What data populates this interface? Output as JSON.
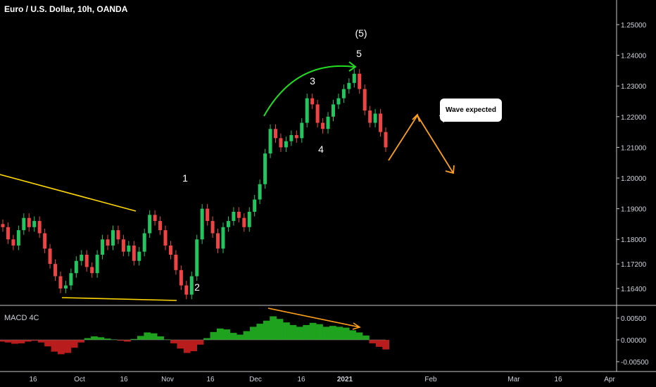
{
  "title": "Euro / U.S. Dollar, 10h, OANDA",
  "macd_title": "MACD 4C",
  "callout_text": "Wave expected",
  "colors": {
    "background": "#000000",
    "up": "#22c55e",
    "down": "#ef4444",
    "macd_up": "#1fa31f",
    "macd_down": "#b91c1c",
    "trend": "#ffd700",
    "arc": "#22dd22",
    "projection": "#ff9f1a"
  },
  "wave_labels": [
    "(5)",
    "5",
    "3",
    "1",
    "4",
    "2"
  ],
  "price_axis": {
    "ticks": [
      "1.25000",
      "1.24000",
      "1.23000",
      "1.22000",
      "1.21000",
      "1.20000",
      "1.19000",
      "1.18000",
      "1.17200",
      "1.16400"
    ]
  },
  "macd_axis": {
    "ticks": [
      "0.00500",
      "0.00000",
      "-0.00500"
    ]
  },
  "time_axis": {
    "ticks": [
      "16",
      "Oct",
      "16",
      "Nov",
      "16",
      "Dec",
      "16",
      "2021",
      "Feb",
      "Mar",
      "16",
      "Apr"
    ]
  },
  "chart_data": [
    {
      "type": "line",
      "title": "Euro / U.S. Dollar, 10h, OANDA",
      "xlabel": "",
      "ylabel": "",
      "ylim": [
        1.159,
        1.258
      ],
      "series": [
        {
          "name": "",
          "values": [
            1.184,
            1.18,
            1.178,
            1.183,
            1.187,
            1.184,
            1.186,
            1.182,
            1.177,
            1.172,
            1.168,
            1.164,
            1.165,
            1.169,
            1.173,
            1.175,
            1.171,
            1.169,
            1.175,
            1.18,
            1.178,
            1.183,
            1.18,
            1.176,
            1.178,
            1.173,
            1.176,
            1.182,
            1.188,
            1.186,
            1.183,
            1.178,
            1.175,
            1.17,
            1.165,
            1.162,
            1.168,
            1.18,
            1.19,
            1.186,
            1.182,
            1.177,
            1.184,
            1.186,
            1.189,
            1.187,
            1.184,
            1.189,
            1.193,
            1.198,
            1.208,
            1.216,
            1.213,
            1.21,
            1.212,
            1.214,
            1.213,
            1.218,
            1.226,
            1.224,
            1.218,
            1.216,
            1.22,
            1.224,
            1.226,
            1.229,
            1.231,
            1.234,
            1.229,
            1.222,
            1.218,
            1.221,
            1.215,
            1.21
          ]
        }
      ],
      "annotations": [
        "(5)",
        "5",
        "3",
        "1",
        "4",
        "2"
      ]
    },
    {
      "type": "bar",
      "title": "MACD 4C",
      "xlabel": "",
      "ylabel": "",
      "ylim": [
        -0.0055,
        0.0057
      ],
      "series": [
        {
          "name": "",
          "values": [
            -0.0004,
            -0.0006,
            -0.0009,
            -0.0008,
            -0.0004,
            -0.0002,
            -0.0006,
            -0.0015,
            -0.0027,
            -0.0033,
            -0.003,
            -0.0018,
            -0.0006,
            0.0004,
            0.0008,
            0.0006,
            0.0003,
            0.0001,
            -0.0002,
            -0.0004,
            0.0002,
            0.0009,
            0.0017,
            0.0015,
            0.0008,
            0.0001,
            -0.0008,
            -0.002,
            -0.003,
            -0.0026,
            -0.0011,
            0.0004,
            0.0018,
            0.0026,
            0.0024,
            0.0016,
            0.0012,
            0.002,
            0.003,
            0.0037,
            0.0044,
            0.0054,
            0.0048,
            0.004,
            0.0034,
            0.003,
            0.0034,
            0.0039,
            0.0036,
            0.003,
            0.0032,
            0.003,
            0.0028,
            0.0022,
            0.0017,
            0.001,
            -0.0008,
            -0.0016,
            -0.0022
          ]
        }
      ]
    }
  ]
}
